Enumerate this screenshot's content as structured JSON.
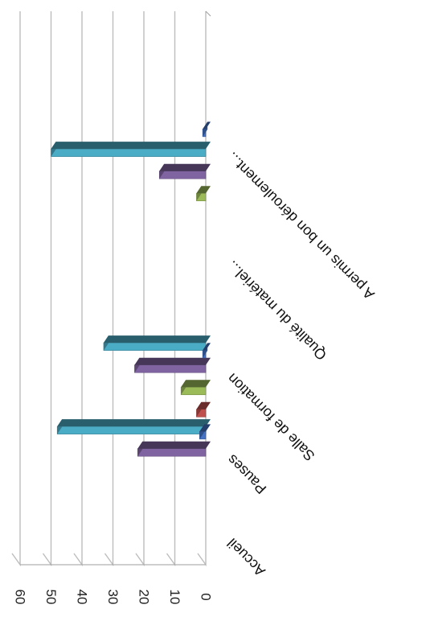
{
  "chart_data": {
    "type": "bar",
    "orientation": "horizontal-3d",
    "categories": [
      "Accueil",
      "Pauses",
      "Salle de formation",
      "Qualité du matériel...",
      "A permis un bon déroulement..."
    ],
    "series": [
      {
        "color": "#4472C4",
        "values": [
          0,
          2,
          1,
          0,
          1
        ]
      },
      {
        "color": "#C0504D",
        "values": [
          0,
          3,
          0,
          0,
          0
        ]
      },
      {
        "color": "#9BBB59",
        "values": [
          0,
          8,
          0,
          3,
          0
        ]
      },
      {
        "color": "#8064A2",
        "values": [
          22,
          23,
          0,
          15,
          0
        ]
      },
      {
        "color": "#4BACC6",
        "values": [
          48,
          33,
          0,
          50,
          0
        ]
      }
    ],
    "extra_bars": [
      {
        "category_index": 3,
        "note": "",
        "values": []
      }
    ],
    "ticks": [
      0,
      10,
      20,
      30,
      40,
      50,
      60
    ],
    "xlim": [
      0,
      60
    ],
    "grid": true,
    "legend": "none",
    "rendered_rotation": "180deg"
  }
}
